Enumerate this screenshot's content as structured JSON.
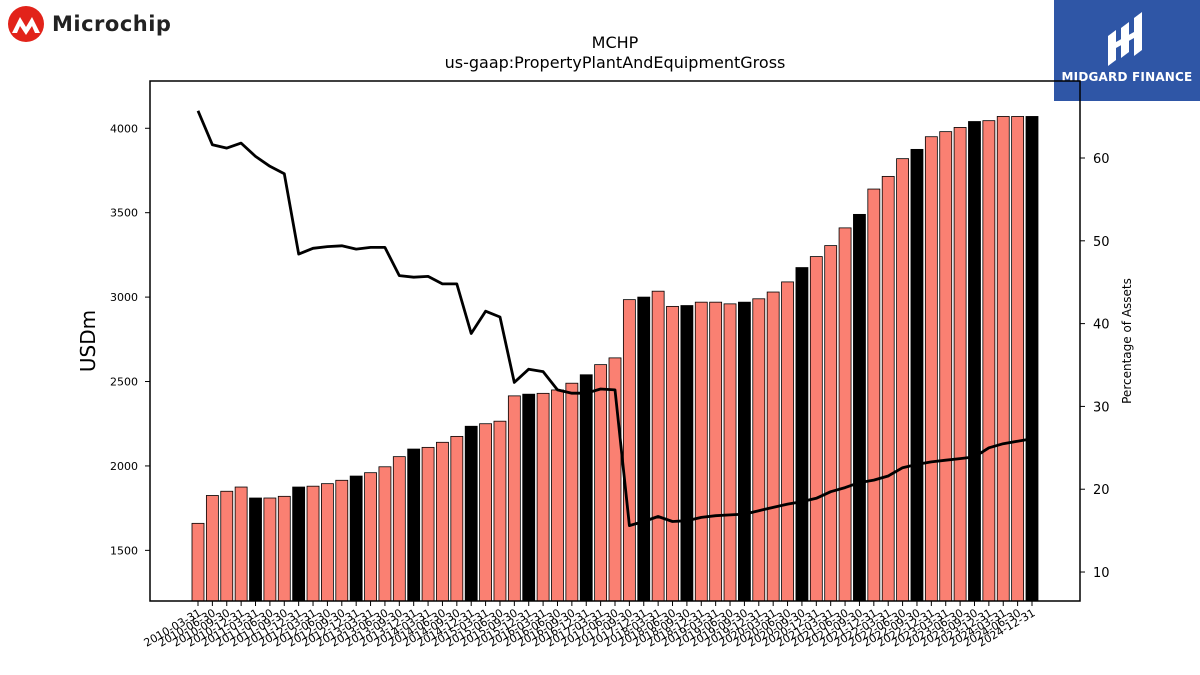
{
  "logos": {
    "left_text": "Microchip",
    "right_text": "MIDGARD FINANCE"
  },
  "chart_data": {
    "type": "bar",
    "title": "MCHP",
    "subtitle": "us-gaap:PropertyPlantAndEquipmentGross",
    "ylabel": "USDm",
    "y2label": "Percentage of Assets",
    "ylim": [
      1200,
      4280
    ],
    "y2lim": [
      6.5,
      69.3
    ],
    "yticks": [
      1500,
      2000,
      2500,
      3000,
      3500,
      4000
    ],
    "y2ticks": [
      10,
      20,
      30,
      40,
      50,
      60
    ],
    "colors": {
      "bar": "#fa8072",
      "bar_highlight": "#000000",
      "line": "#000000"
    },
    "categories": [
      "2010-03-31",
      "2010-06-30",
      "2010-09-30",
      "2010-12-31",
      "2011-03-31",
      "2011-06-30",
      "2011-09-30",
      "2011-12-31",
      "2012-03-31",
      "2012-06-30",
      "2012-09-30",
      "2012-12-31",
      "2013-03-31",
      "2013-06-30",
      "2013-09-30",
      "2013-12-31",
      "2014-03-31",
      "2014-06-30",
      "2014-09-30",
      "2014-12-31",
      "2015-03-31",
      "2015-06-30",
      "2015-09-30",
      "2015-12-31",
      "2016-03-31",
      "2016-06-30",
      "2016-09-30",
      "2016-12-31",
      "2017-03-31",
      "2017-06-30",
      "2017-09-30",
      "2017-12-31",
      "2018-03-31",
      "2018-06-30",
      "2018-09-30",
      "2018-12-31",
      "2019-03-31",
      "2019-06-30",
      "2019-09-30",
      "2019-12-31",
      "2020-03-31",
      "2020-06-30",
      "2020-09-30",
      "2020-12-31",
      "2021-03-31",
      "2021-06-30",
      "2021-09-30",
      "2021-12-31",
      "2022-03-31",
      "2022-06-30",
      "2022-09-30",
      "2022-12-31",
      "2023-03-31",
      "2023-06-30",
      "2023-09-30",
      "2023-12-31",
      "2024-03-31",
      "2024-06-30",
      "2024-12-31"
    ],
    "tick_labels": [
      "2010-03-31",
      "2010-06-30",
      "2010-09-30",
      "2010-12-31",
      "2011-03-31",
      "2011-06-30",
      "2011-09-30",
      "2011-12-31",
      "2012-03-31",
      "2012-06-30",
      "2012-09-30",
      "2012-12-31",
      "2013-03-31",
      "2013-06-30",
      "2013-09-30",
      "2013-12-31",
      "2014-03-31",
      "2014-06-30",
      "2014-09-30",
      "2014-12-31",
      "2015-03-31",
      "2015-06-30",
      "2015-09-30",
      "2015-12-31",
      "2016-03-31",
      "2016-06-30",
      "2016-09-30",
      "2016-12-31",
      "2017-03-31",
      "2017-06-30",
      "2017-09-30",
      "2017-12-31",
      "2018-03-31",
      "2018-06-30",
      "2018-09-30",
      "2018-12-31",
      "2019-03-31",
      "2019-06-30",
      "2019-09-30",
      "2019-12-31",
      "2020-03-31",
      "2020-06-30",
      "2020-09-30",
      "2020-12-31",
      "2021-03-31",
      "2021-06-30",
      "2021-09-30",
      "2021-12-31",
      "2022-03-31",
      "2022-06-30",
      "2022-09-30",
      "2022-12-31",
      "2023-03-31",
      "2023-06-30",
      "2023-09-30",
      "2023-12-31",
      "2024-03-31",
      "2024-06-30",
      "2024-12-31"
    ],
    "highlight": [
      false,
      false,
      false,
      false,
      true,
      false,
      false,
      true,
      false,
      false,
      false,
      true,
      false,
      false,
      false,
      true,
      false,
      false,
      false,
      true,
      false,
      false,
      false,
      true,
      false,
      false,
      false,
      true,
      false,
      false,
      false,
      true,
      false,
      false,
      true,
      false,
      false,
      false,
      true,
      false,
      false,
      false,
      true,
      false,
      false,
      false,
      true,
      false,
      false,
      false,
      true,
      false,
      false,
      false,
      true,
      false,
      false,
      false,
      true
    ],
    "values": [
      1660,
      1825,
      1850,
      1875,
      1810,
      1810,
      1820,
      1875,
      1880,
      1895,
      1915,
      1940,
      1960,
      1995,
      2055,
      2100,
      2110,
      2140,
      2175,
      2235,
      2250,
      2265,
      2415,
      2425,
      2430,
      2450,
      2490,
      2540,
      2600,
      2640,
      2985,
      3000,
      3035,
      2945,
      2950,
      2970,
      2970,
      2960,
      2970,
      2990,
      3030,
      3090,
      3175,
      3240,
      3305,
      3410,
      3490,
      3640,
      3715,
      3820,
      3875,
      3950,
      3980,
      4005,
      4040,
      4045,
      4070,
      4070,
      4070
    ],
    "series": [
      {
        "name": "Percentage of Assets",
        "axis": "right",
        "values": [
          65.7,
          61.6,
          61.2,
          61.8,
          60.2,
          59.0,
          58.1,
          48.4,
          49.1,
          49.3,
          49.4,
          49.0,
          49.2,
          49.2,
          45.8,
          45.6,
          45.7,
          44.8,
          44.8,
          38.8,
          41.5,
          40.8,
          32.9,
          34.5,
          34.2,
          32.0,
          31.6,
          31.6,
          32.1,
          32.0,
          15.6,
          16.1,
          16.7,
          16.1,
          16.2,
          16.6,
          16.8,
          16.9,
          17.0,
          17.4,
          17.8,
          18.2,
          18.5,
          18.9,
          19.7,
          20.2,
          20.8,
          21.1,
          21.6,
          22.6,
          23.0,
          23.3,
          23.5,
          23.7,
          23.9,
          25.0,
          25.5,
          25.8,
          26.1
        ]
      }
    ]
  }
}
